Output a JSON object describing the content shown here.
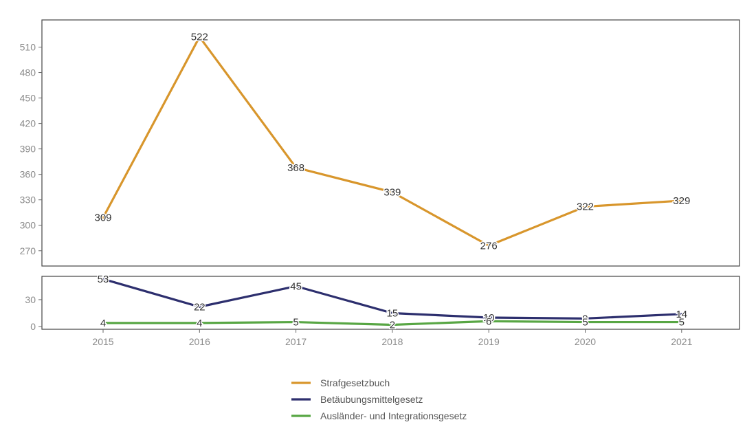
{
  "chart_data": {
    "type": "line",
    "x": [
      "2015",
      "2016",
      "2017",
      "2018",
      "2019",
      "2020",
      "2021"
    ],
    "panels": [
      {
        "ylim": [
          252,
          542
        ],
        "yticks": [
          270,
          300,
          330,
          360,
          390,
          420,
          450,
          480,
          510
        ],
        "series_indices": [
          0
        ]
      },
      {
        "ylim": [
          -3,
          56
        ],
        "yticks": [
          0,
          30
        ],
        "series_indices": [
          1,
          2
        ]
      }
    ],
    "series": [
      {
        "name": "Strafgesetzbuch",
        "color": "#d8962c",
        "values": [
          309,
          522,
          368,
          339,
          276,
          322,
          329
        ]
      },
      {
        "name": "Betäubungsmittelgesetz",
        "color": "#2d2f6e",
        "values": [
          53,
          22,
          45,
          15,
          10,
          9,
          14
        ]
      },
      {
        "name": "Ausländer- und Integrationsgesetz",
        "color": "#58a644",
        "values": [
          4,
          4,
          5,
          2,
          6,
          5,
          5
        ]
      }
    ],
    "data_labels": [
      [
        "309",
        "522",
        "368",
        "339",
        "276",
        "322",
        "329"
      ],
      [
        "53",
        "22",
        "45",
        "15",
        "10",
        "9",
        "14"
      ],
      [
        "4",
        "4",
        "5",
        "2",
        "6",
        "5",
        "5"
      ]
    ],
    "legend_position": "bottom-center",
    "grid": false
  }
}
